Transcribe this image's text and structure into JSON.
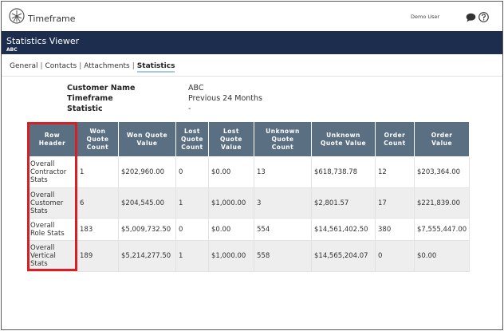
{
  "app": {
    "title": "Timeframe",
    "user": "Demo User"
  },
  "header": {
    "title": "Statistics Viewer",
    "subtitle": "ABC"
  },
  "tabs": [
    {
      "label": "General"
    },
    {
      "label": "Contacts"
    },
    {
      "label": "Attachments"
    },
    {
      "label": "Statistics"
    }
  ],
  "meta": {
    "customer_name_label": "Customer Name",
    "customer_name_value": "ABC",
    "timeframe_label": "Timeframe",
    "timeframe_value": "Previous 24 Months",
    "statistic_label": "Statistic",
    "statistic_value": "-"
  },
  "table": {
    "headers": [
      [
        "Row",
        "Header"
      ],
      [
        "Won",
        "Quote",
        "Count"
      ],
      [
        "Won Quote",
        "Value"
      ],
      [
        "Lost",
        "Quote",
        "Count"
      ],
      [
        "Lost",
        "Quote",
        "Value"
      ],
      [
        "Unknown",
        "Quote",
        "Count"
      ],
      [
        "Unknown",
        "Quote Value"
      ],
      [
        "Order",
        "Count"
      ],
      [
        "Order",
        "Value"
      ]
    ],
    "rows": [
      {
        "header": [
          "Overall",
          "Contractor",
          "Stats"
        ],
        "cells": [
          "1",
          "$202,960.00",
          "0",
          "$0.00",
          "13",
          "$618,738.78",
          "12",
          "$203,364.00"
        ]
      },
      {
        "header": [
          "Overall",
          "Customer",
          "Stats"
        ],
        "cells": [
          "6",
          "$204,545.00",
          "1",
          "$1,000.00",
          "3",
          "$2,801.57",
          "17",
          "$221,839.00"
        ]
      },
      {
        "header": [
          "Overall",
          "Role Stats"
        ],
        "cells": [
          "183",
          "$5,009,732.50",
          "0",
          "$0.00",
          "554",
          "$14,561,402.50",
          "380",
          "$7,555,447.00"
        ]
      },
      {
        "header": [
          "Overall",
          "Vertical",
          "Stats"
        ],
        "cells": [
          "189",
          "$5,214,277.50",
          "1",
          "$1,000.00",
          "558",
          "$14,565,204.07",
          "0",
          "$0.00"
        ]
      }
    ]
  },
  "colors": {
    "header_band": "#1c2d4d",
    "table_header": "#5b6f83",
    "highlight": "#d81f26"
  }
}
